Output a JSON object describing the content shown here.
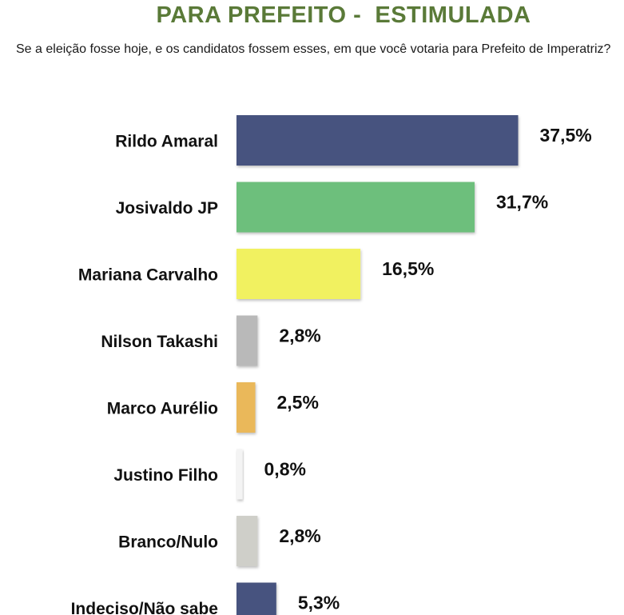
{
  "chart_data": {
    "type": "bar",
    "orientation": "horizontal",
    "title": "PARA PREFEITO -  ESTIMULADA",
    "subtitle": "Se a eleição fosse hoje, e os candidatos fossem esses, em que você votaria para Prefeito de Imperatriz?",
    "categories": [
      "Rildo Amaral",
      "Josivaldo JP",
      "Mariana Carvalho",
      "Nilson Takashi",
      "Marco Aurélio",
      "Justino Filho",
      "Branco/Nulo",
      "Indeciso/Não sabe"
    ],
    "values": [
      37.5,
      31.7,
      16.5,
      2.8,
      2.5,
      0.8,
      2.8,
      5.3
    ],
    "value_labels": [
      "37,5%",
      "31,7%",
      "16,5%",
      "2,8%",
      "2,5%",
      "0,8%",
      "2,8%",
      "5,3%"
    ],
    "colors": [
      "#47537f",
      "#6dbf7c",
      "#f1f160",
      "#b9b9b9",
      "#eab85a",
      "#f4f4f4",
      "#cfcfc9",
      "#47537f"
    ],
    "unit": "%",
    "grid": false,
    "legend": "none"
  }
}
